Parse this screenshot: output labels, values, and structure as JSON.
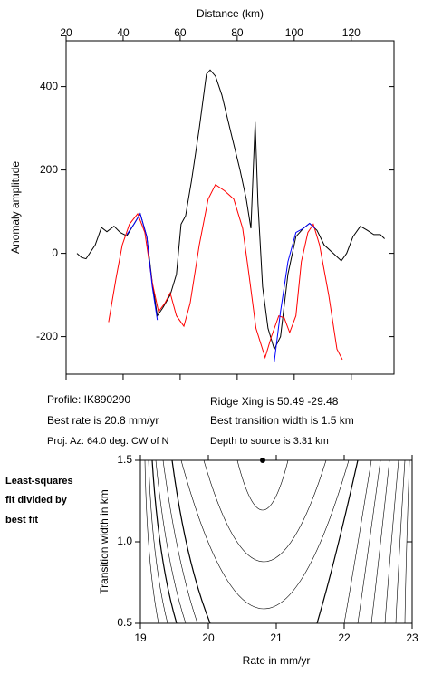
{
  "chart_data": [
    {
      "type": "line",
      "xlabel": "Distance (km)",
      "ylabel": "Anomaly amplitude",
      "xaxis": "top",
      "xlim": [
        20,
        135
      ],
      "ylim": [
        -290,
        510
      ],
      "xticks": [
        20,
        40,
        60,
        80,
        100,
        120
      ],
      "yticks": [
        -200,
        0,
        200,
        400
      ],
      "series": [
        {
          "color": "#000000",
          "x": [
            23.8,
            25.4,
            27,
            30.2,
            32.4,
            34.3,
            36.8,
            39,
            41.3,
            43.8,
            46,
            48.3,
            50.2,
            52,
            54,
            56.5,
            58.7,
            60.3,
            61.9,
            64,
            66.7,
            69.2,
            70.5,
            72.4,
            74.6,
            77.8,
            81,
            83.2,
            84.8,
            86.3,
            87.3,
            88.9,
            90.8,
            93,
            95.2,
            97.8,
            100.6,
            103.2,
            105.4,
            108,
            110.5,
            113.7,
            116.5,
            118.4,
            120.6,
            123.2,
            125.7,
            127.9,
            130.2,
            131.7
          ],
          "values": [
            0,
            -10,
            -13,
            20,
            62,
            52,
            65,
            50,
            42,
            70,
            95,
            40,
            -70,
            -150,
            -130,
            -100,
            -50,
            70,
            90,
            175,
            300,
            430,
            440,
            425,
            380,
            290,
            200,
            130,
            60,
            315,
            120,
            -80,
            -180,
            -230,
            -200,
            -50,
            40,
            60,
            72,
            55,
            20,
            0,
            -18,
            0,
            40,
            65,
            55,
            45,
            45,
            35
          ]
        },
        {
          "color": "#ff0000",
          "x": [
            34.9,
            37.5,
            39.7,
            42.2,
            45.1,
            47.6,
            50.2,
            52.4,
            54.6,
            56.5,
            58.7,
            61.3,
            63.5,
            66.7,
            69.8,
            72.4,
            75.6,
            78.8,
            81.9,
            84.1,
            86.6,
            89.8,
            92,
            94.6,
            96.5,
            98.4,
            100.6,
            102.5,
            104.8,
            106.7,
            108.9,
            112.1,
            115,
            116.9
          ],
          "values": [
            -165,
            -60,
            20,
            70,
            95,
            50,
            -70,
            -140,
            -120,
            -95,
            -150,
            -175,
            -120,
            20,
            130,
            165,
            150,
            130,
            60,
            -50,
            -180,
            -250,
            -200,
            -150,
            -155,
            -190,
            -150,
            -20,
            50,
            70,
            20,
            -100,
            -230,
            -255
          ]
        },
        {
          "color": "#0000ff",
          "x": [
            41.3,
            43.8,
            46,
            48.3,
            50.2,
            52,
            null,
            93,
            95.2,
            97.8,
            100.6,
            103.2,
            105.4,
            107.3
          ],
          "values": [
            45,
            70,
            95,
            40,
            -80,
            -160,
            null,
            -260,
            -140,
            -20,
            50,
            60,
            72,
            60
          ]
        }
      ]
    },
    {
      "type": "scatter",
      "xlabel": "Rate in mm/yr",
      "ylabel": "Transition width in km",
      "xaxis": "bottom",
      "xlim": [
        19,
        23
      ],
      "ylim": [
        0.5,
        1.5
      ],
      "xticks": [
        19,
        20,
        21,
        22,
        23
      ],
      "yticks": [
        0.5,
        {
          "value": 1,
          "label": "1.0"
        },
        1.5
      ],
      "series": [
        {
          "color": "#000000",
          "x": [
            20.8
          ],
          "values": [
            1.5
          ]
        }
      ]
    }
  ],
  "info": [
    "Profile: IK890290",
    "Best rate is 20.8 mm/yr",
    "Proj. Az: 64.0 deg. CW of N",
    "Ridge Xing is 50.49 -29.48",
    "Best transition width is 1.5 km",
    "Depth to source is   3.31 km"
  ],
  "note": [
    "Least-squares",
    "fit divided by",
    "best fit"
  ]
}
